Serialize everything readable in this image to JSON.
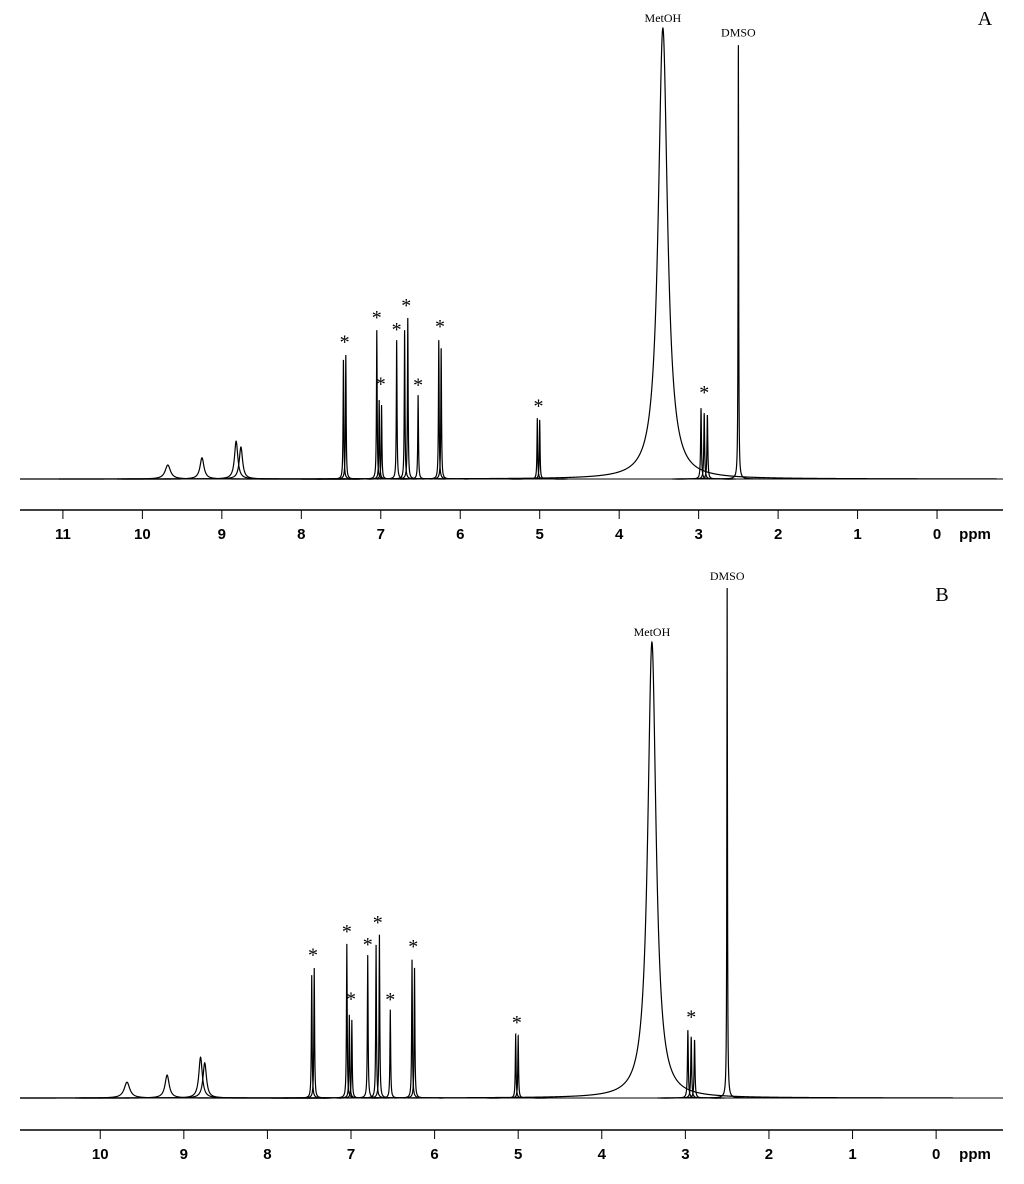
{
  "chart_data": [
    {
      "type": "spectrum",
      "label": "A",
      "x_label": "ppm",
      "color": "#000000",
      "x": [
        9.68,
        9.25,
        8.82,
        8.76,
        7.47,
        7.44,
        7.05,
        7.02,
        6.99,
        6.8,
        6.7,
        6.66,
        6.53,
        6.27,
        6.24,
        5.03,
        5.0,
        3.45,
        2.97,
        2.93,
        2.89,
        2.5
      ],
      "values": [
        3.1,
        4.7,
        8.4,
        7.1,
        26.4,
        27.5,
        33.0,
        17.5,
        16.4,
        30.8,
        33.0,
        35.7,
        18.6,
        30.8,
        29.0,
        13.5,
        13.1,
        100,
        15.7,
        14.6,
        14.2,
        96.2
      ],
      "linewidths": [
        0.04,
        0.03,
        0.025,
        0.025,
        0.005,
        0.005,
        0.005,
        0.005,
        0.005,
        0.005,
        0.005,
        0.005,
        0.005,
        0.005,
        0.005,
        0.005,
        0.005,
        0.07,
        0.006,
        0.006,
        0.006,
        0.004
      ],
      "xlim": [
        11.54,
        -0.83
      ],
      "xticks": [
        11,
        10,
        9,
        8,
        7,
        6,
        5,
        4,
        3,
        2,
        1,
        0
      ],
      "ylim": [
        0,
        100
      ],
      "annotations": [
        {
          "text": "MetOH",
          "x": 3.45
        },
        {
          "text": "DMSO",
          "x": 2.5
        },
        {
          "text": "*",
          "x": 7.455
        },
        {
          "text": "*",
          "x": 7.05
        },
        {
          "text": "*",
          "x": 7.0
        },
        {
          "text": "*",
          "x": 6.8
        },
        {
          "text": "*",
          "x": 6.68
        },
        {
          "text": "*",
          "x": 6.53
        },
        {
          "text": "*",
          "x": 6.255
        },
        {
          "text": "*",
          "x": 5.015
        },
        {
          "text": "*",
          "x": 2.93
        }
      ]
    },
    {
      "type": "spectrum",
      "label": "B",
      "x_label": "ppm",
      "color": "#000000",
      "x": [
        9.68,
        9.2,
        8.8,
        8.75,
        7.47,
        7.44,
        7.05,
        7.02,
        6.99,
        6.8,
        6.7,
        6.66,
        6.53,
        6.27,
        6.24,
        5.03,
        5.0,
        3.4,
        2.97,
        2.93,
        2.89,
        2.5
      ],
      "values": [
        3.1,
        4.5,
        8.0,
        6.9,
        24.1,
        25.5,
        30.2,
        16.3,
        15.3,
        28.0,
        30.0,
        32.0,
        17.3,
        27.1,
        25.5,
        12.5,
        12.2,
        89.4,
        13.3,
        12.0,
        11.4,
        100
      ],
      "linewidths": [
        0.04,
        0.03,
        0.025,
        0.025,
        0.005,
        0.005,
        0.005,
        0.005,
        0.005,
        0.005,
        0.005,
        0.005,
        0.005,
        0.005,
        0.005,
        0.005,
        0.005,
        0.06,
        0.006,
        0.006,
        0.006,
        0.004
      ],
      "xlim": [
        10.96,
        -0.8
      ],
      "xticks": [
        10,
        9,
        8,
        7,
        6,
        5,
        4,
        3,
        2,
        1,
        0
      ],
      "ylim": [
        0,
        100
      ],
      "annotations": [
        {
          "text": "MetOH",
          "x": 3.4
        },
        {
          "text": "DMSO",
          "x": 2.5
        },
        {
          "text": "*",
          "x": 7.455
        },
        {
          "text": "*",
          "x": 7.05
        },
        {
          "text": "*",
          "x": 7.0
        },
        {
          "text": "*",
          "x": 6.8
        },
        {
          "text": "*",
          "x": 6.68
        },
        {
          "text": "*",
          "x": 6.53
        },
        {
          "text": "*",
          "x": 6.255
        },
        {
          "text": "*",
          "x": 5.015
        },
        {
          "text": "*",
          "x": 2.93
        }
      ]
    }
  ]
}
